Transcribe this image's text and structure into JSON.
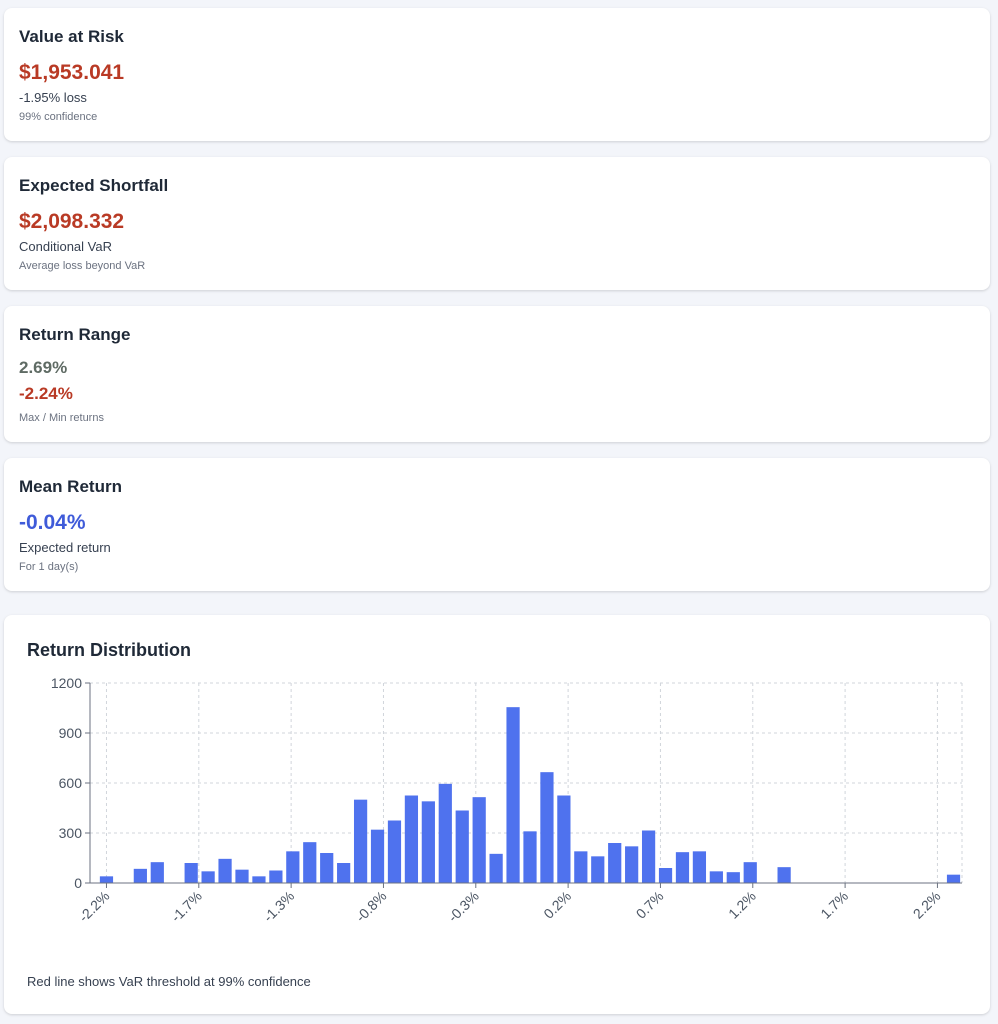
{
  "cards": {
    "var": {
      "title": "Value at Risk",
      "value": "$1,953.041",
      "detail": "-1.95% loss",
      "note": "99% confidence"
    },
    "es": {
      "title": "Expected Shortfall",
      "value": "$2,098.332",
      "detail": "Conditional VaR",
      "note": "Average loss beyond VaR"
    },
    "range": {
      "title": "Return Range",
      "max": "2.69%",
      "min": "-2.24%",
      "note": "Max / Min returns"
    },
    "mean": {
      "title": "Mean Return",
      "value": "-0.04%",
      "detail": "Expected return",
      "note": "For 1 day(s)"
    }
  },
  "chart": {
    "title": "Return Distribution",
    "footnote": "Red line shows VaR threshold at 99% confidence"
  },
  "colors": {
    "bar": "#4f72ee",
    "loss": "#b93a25",
    "gain": "#5f6b64",
    "mean": "#3f5bd9",
    "grid": "#d1d5db"
  },
  "chart_data": {
    "type": "bar",
    "ylim": [
      0,
      1200
    ],
    "yticks": [
      0,
      300,
      600,
      900,
      1200
    ],
    "xticks": [
      "-2.2%",
      "-1.7%",
      "-1.3%",
      "-0.8%",
      "-0.3%",
      "0.2%",
      "0.7%",
      "1.2%",
      "1.7%",
      "2.2%"
    ],
    "grid": true,
    "series": [
      {
        "values": [
          40,
          0,
          85,
          125,
          0,
          120,
          70,
          145,
          80,
          40,
          75,
          190,
          245,
          180,
          120,
          500,
          320,
          375,
          525,
          490,
          595,
          435,
          515,
          175,
          1055,
          310,
          665,
          525,
          190,
          160,
          240,
          220,
          315,
          90,
          185,
          190,
          70,
          65,
          125,
          0,
          95,
          0,
          0,
          0,
          0,
          0,
          0,
          0,
          0,
          0,
          50
        ]
      }
    ]
  }
}
